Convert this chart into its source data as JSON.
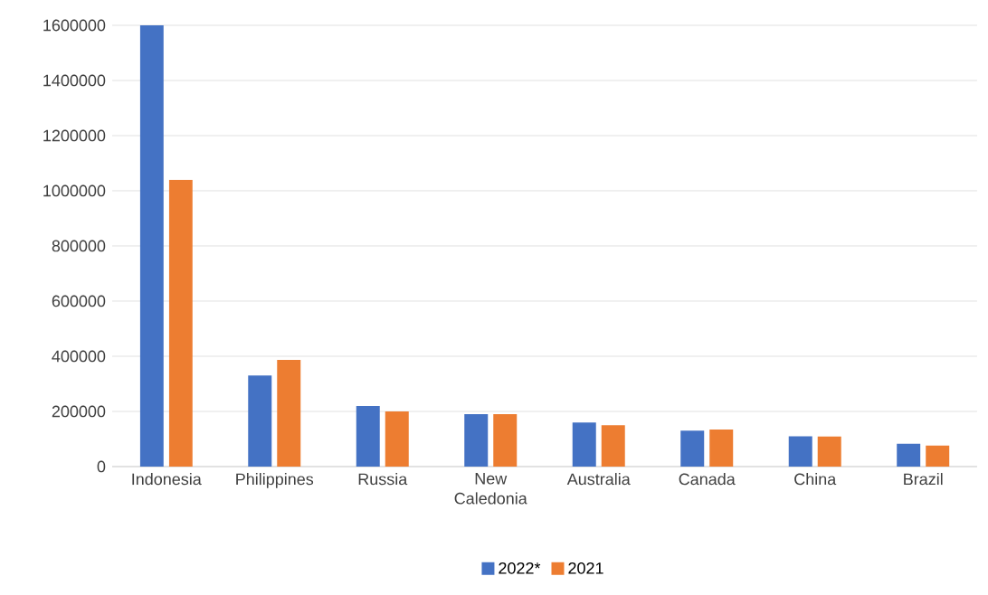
{
  "chart_data": {
    "type": "bar",
    "categories": [
      "Indonesia",
      "Philippines",
      "Russia",
      "New Caledonia",
      "Australia",
      "Canada",
      "China",
      "Brazil"
    ],
    "series": [
      {
        "name": "2022*",
        "color": "#4472c4",
        "values": [
          1600000,
          330000,
          220000,
          190000,
          160000,
          130000,
          110000,
          83000
        ]
      },
      {
        "name": "2021",
        "color": "#ed7d31",
        "values": [
          1040000,
          387000,
          200000,
          190000,
          150000,
          134000,
          109000,
          76000
        ]
      }
    ],
    "ylim": [
      0,
      1600000
    ],
    "yticks": [
      0,
      200000,
      400000,
      600000,
      800000,
      1000000,
      1200000,
      1400000,
      1600000
    ],
    "grid": "y",
    "legend": "bottom"
  }
}
